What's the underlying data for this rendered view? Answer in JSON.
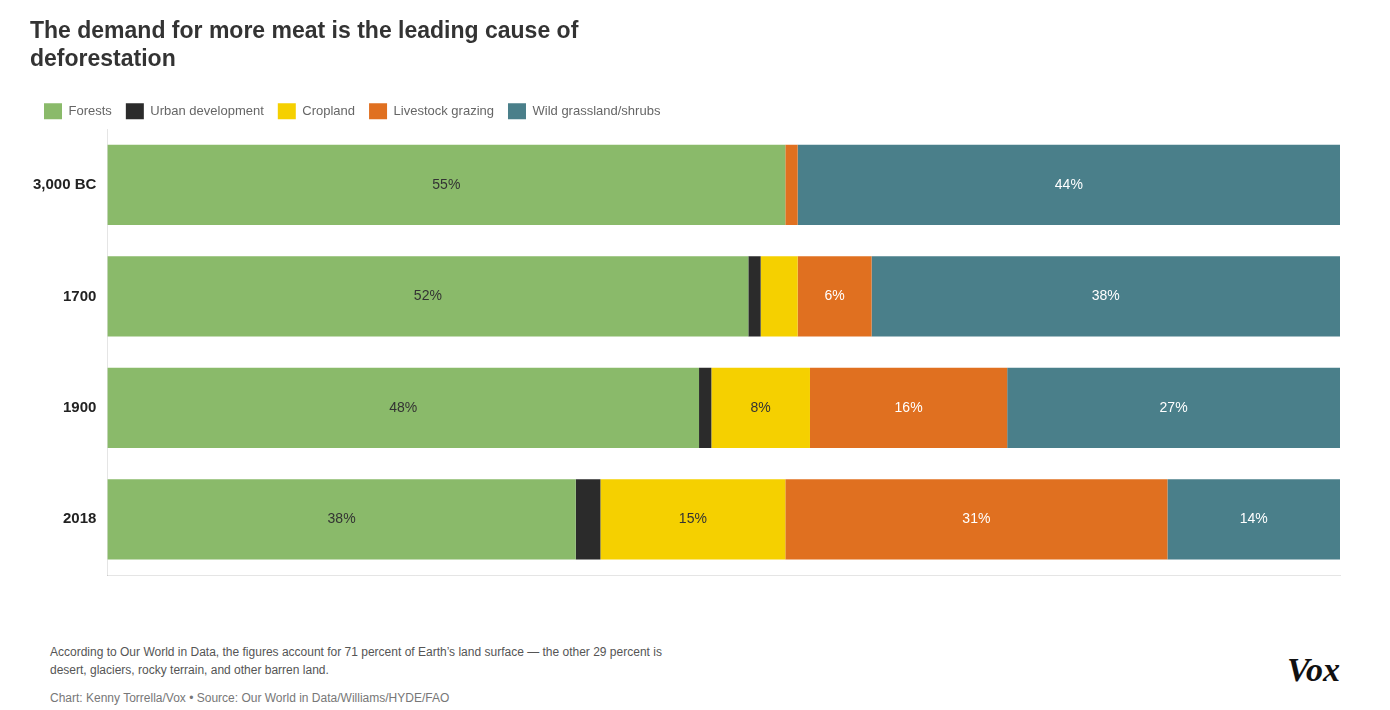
{
  "chart_data": {
    "type": "bar",
    "orientation": "horizontal",
    "stacked": true,
    "title": [
      "The demand for more meat is the leading cause of",
      "deforestation"
    ],
    "categories": [
      "3,000 BC",
      "1700",
      "1900",
      "2018"
    ],
    "series": [
      {
        "name": "Forests",
        "color": "#8aba6a",
        "values": [
          55,
          52,
          48,
          38
        ],
        "value_labels": [
          "55%",
          "52%",
          "48%",
          "38%"
        ]
      },
      {
        "name": "Urban development",
        "color": "#2b2b2b",
        "values": [
          0,
          1,
          1,
          2
        ],
        "value_labels": [
          null,
          null,
          null,
          null
        ]
      },
      {
        "name": "Cropland",
        "color": "#f5d000",
        "values": [
          0,
          3,
          8,
          15
        ],
        "value_labels": [
          null,
          null,
          "8%",
          "15%"
        ]
      },
      {
        "name": "Livestock grazing",
        "color": "#e07020",
        "values": [
          1,
          6,
          16,
          31
        ],
        "value_labels": [
          null,
          "6%",
          "16%",
          "31%"
        ]
      },
      {
        "name": "Wild grassland/shrubs",
        "color": "#4a7f8a",
        "values": [
          44,
          38,
          27,
          14
        ],
        "value_labels": [
          "44%",
          "38%",
          "27%",
          "14%"
        ]
      }
    ],
    "xlim": [
      0,
      100
    ],
    "data_labels": true,
    "tick_labels": "y",
    "grid": false,
    "legend": "upper left",
    "annotations": [
      "According to Our World in Data, the figures account for 71 percent of Earth’s land surface — the other 29 percent is",
      "desert, glaciers, rocky terrain, and other barren land.",
      "Chart: Kenny Torrella/Vox • Source: Our World in Data/Williams/HYDE/FAO",
      "Vox"
    ]
  }
}
